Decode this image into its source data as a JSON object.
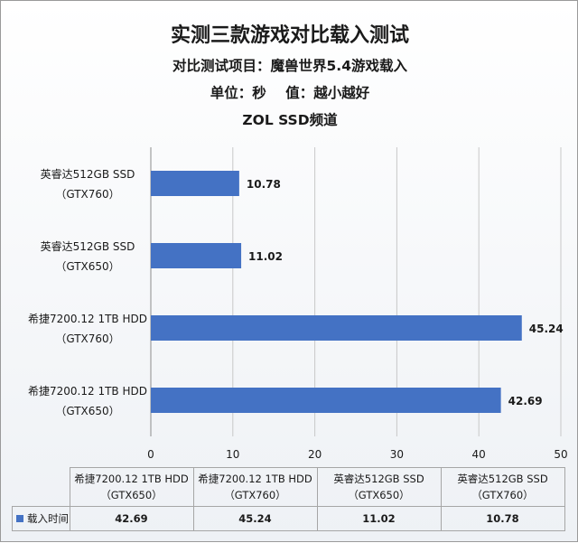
{
  "header": {
    "title": "实测三款游戏对比载入测试",
    "line1": "对比测试项目：魔兽世界5.4游戏载入",
    "line2": "单位：秒    值：越小越好",
    "line3": "ZOL SSD频道"
  },
  "chart_data": {
    "type": "bar",
    "orientation": "horizontal",
    "title": "实测三款游戏对比载入测试",
    "categories": [
      [
        "英睿达512GB SSD",
        "（GTX760）"
      ],
      [
        "英睿达512GB SSD",
        "（GTX650）"
      ],
      [
        "希捷7200.12 1TB HDD",
        "（GTX760）"
      ],
      [
        "希捷7200.12 1TB HDD",
        "（GTX650）"
      ]
    ],
    "series": [
      {
        "name": "载入时间",
        "values": [
          10.78,
          11.02,
          45.24,
          42.69
        ]
      }
    ],
    "xlim": [
      0,
      50
    ],
    "xticks": [
      0,
      10,
      20,
      30,
      40,
      50
    ],
    "grid": true,
    "bar_color": "#4472c4",
    "data_table": true
  },
  "table": {
    "headers": [
      [
        "希捷7200.12 1TB HDD",
        "（GTX650）"
      ],
      [
        "希捷7200.12 1TB HDD",
        "（GTX760）"
      ],
      [
        "英睿达512GB SSD",
        "（GTX650）"
      ],
      [
        "英睿达512GB SSD",
        "（GTX760）"
      ]
    ],
    "legend_label": "载入时间",
    "values": [
      "42.69",
      "45.24",
      "11.02",
      "10.78"
    ]
  }
}
